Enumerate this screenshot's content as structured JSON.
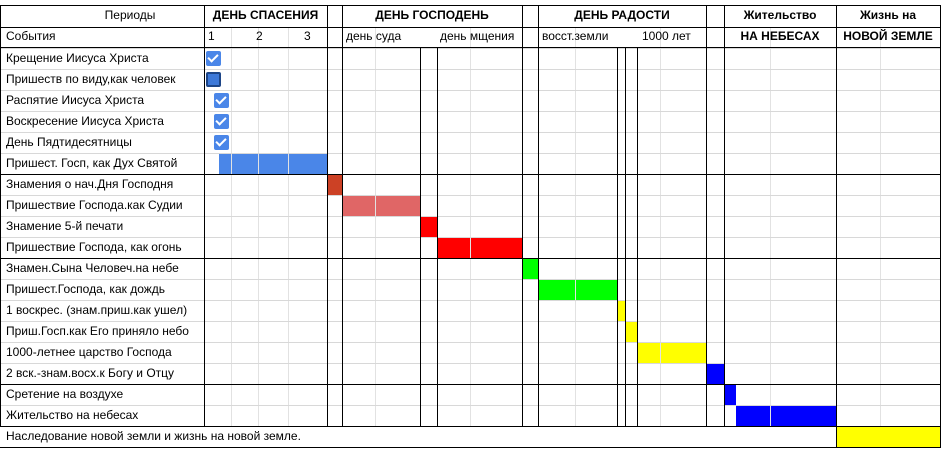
{
  "header": {
    "periods": "Периоды",
    "events": "События",
    "groups": [
      {
        "title": "ДЕНЬ СПАСЕНИЯ",
        "sub": [
          "1",
          "2",
          "3"
        ]
      },
      {
        "title": "ДЕНЬ ГОСПОДЕНЬ",
        "sub": [
          "день суда",
          "день мщения"
        ]
      },
      {
        "title": "ДЕНЬ РАДОСТИ",
        "sub": [
          "восст.земли",
          "1000 лет"
        ]
      },
      {
        "title": "Жительство",
        "sub": [
          "НА НЕБЕСАХ"
        ]
      },
      {
        "title": "Жизнь на",
        "sub": [
          "НОВОЙ ЗЕМЛЕ"
        ]
      }
    ]
  },
  "rows": [
    "Крещение Иисуса Христа",
    "Пришеств по виду,как человек",
    "Распятие Иисуса Христа",
    "Воскресение Иисуса Христа",
    "День Пядтидесятницы",
    "Пришест. Госп, как Дух Святой",
    "Знамения о нач.Дня Господня",
    "Пришествие Господа.как Судии",
    "Знамение 5-й печати",
    "Пришествие Господа, как огонь",
    "Знамен.Сына Человеч.на небе",
    "Пришест.Господа, как дождь",
    "1 воскрес. (знам.приш.как ушел)",
    "Приш.Госп.как Его приняло небо",
    "1000-летнее царство Господа",
    "2 вск.-знам.восх.к Богу и Отцу",
    "Сретение на воздухе",
    "Жительство на небесах",
    "Наследование новой земли и жизнь на новой земле."
  ]
}
